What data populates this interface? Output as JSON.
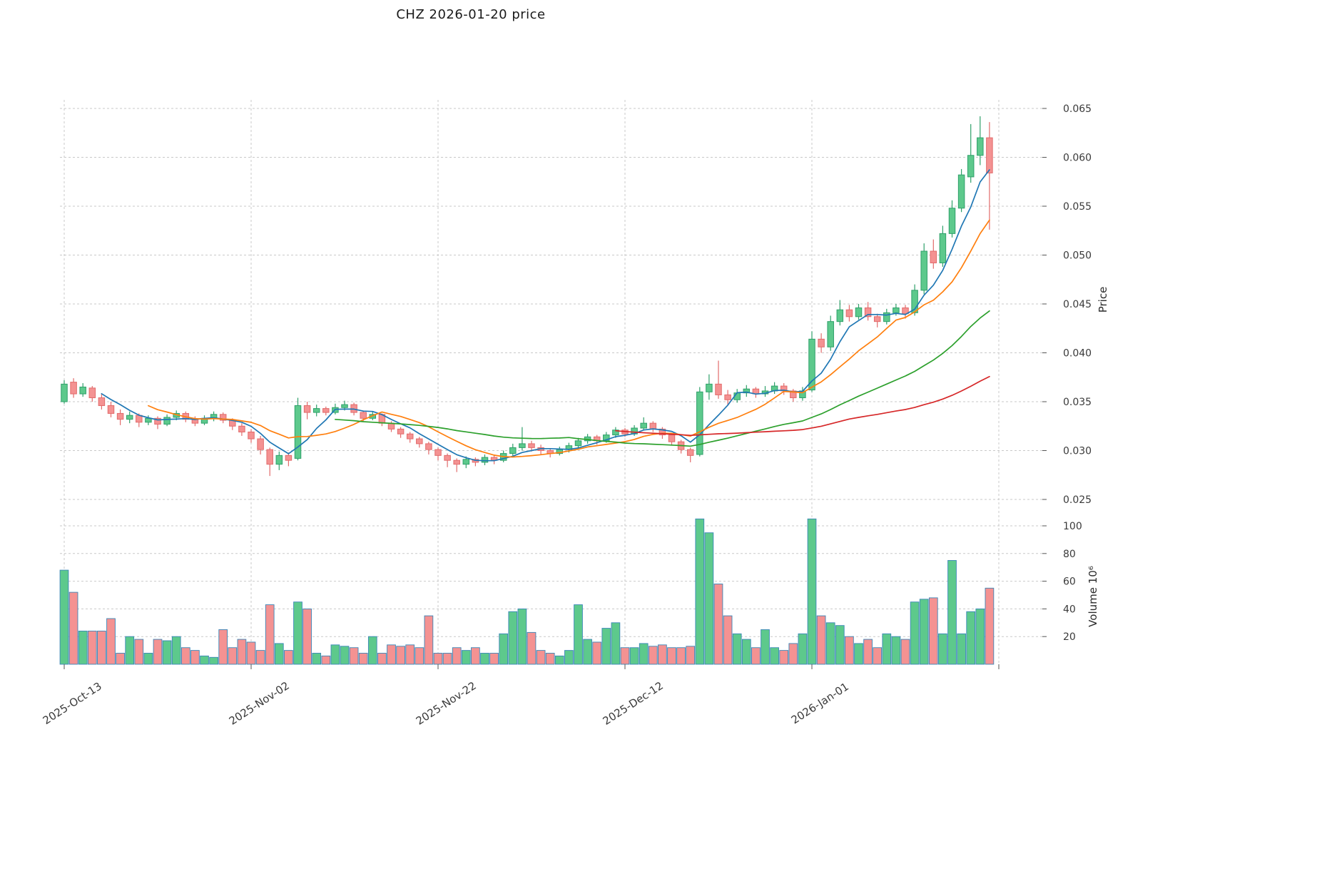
{
  "title": "CHZ  2026-01-20  price",
  "chart_data": {
    "type": "candlestick",
    "title": "CHZ  2026-01-20  price",
    "price_axis": {
      "label": "Price",
      "ticks": [
        "0.025",
        "0.030",
        "0.035",
        "0.040",
        "0.045",
        "0.050",
        "0.055",
        "0.060",
        "0.065"
      ],
      "min": 0.025,
      "max": 0.065
    },
    "volume_axis": {
      "label": "Volume  10⁶",
      "ticks": [
        20,
        40,
        60,
        80,
        100
      ],
      "max": 100,
      "unit_multiplier": 1000000
    },
    "x_axis": {
      "ticks": [
        {
          "day": 0,
          "label": "2025-Oct-13"
        },
        {
          "day": 20,
          "label": "2025-Nov-02"
        },
        {
          "day": 40,
          "label": "2025-Nov-22"
        },
        {
          "day": 60,
          "label": "2025-Dec-12"
        },
        {
          "day": 80,
          "label": "2026-Jan-01"
        }
      ],
      "extra_grid_days": [
        100
      ]
    },
    "colors": {
      "up_fill": "#5dc98c",
      "up_edge": "#2fa06a",
      "down_fill": "#f49292",
      "down_edge": "#e26b6b",
      "volume_edge": "#3b87b8",
      "grid": "#c9c9c9",
      "ma": [
        "#1f77b4",
        "#ff7f0e",
        "#2ca02c",
        "#d62728"
      ]
    },
    "ma_windows": [
      5,
      10,
      30,
      60
    ],
    "price_scale": 0.001,
    "ohlcv_format": [
      "open",
      "high",
      "low",
      "close",
      "volume_millions"
    ],
    "ohlcv": [
      [
        35.0,
        37.2,
        34.8,
        36.8,
        68
      ],
      [
        37.0,
        37.4,
        35.4,
        35.8,
        52
      ],
      [
        35.8,
        36.9,
        35.5,
        36.5,
        24
      ],
      [
        36.4,
        36.6,
        35.0,
        35.4,
        24
      ],
      [
        35.4,
        35.8,
        34.2,
        34.6,
        24
      ],
      [
        34.6,
        35.0,
        33.4,
        33.8,
        33
      ],
      [
        33.8,
        34.2,
        32.6,
        33.2,
        8
      ],
      [
        33.2,
        34.0,
        32.8,
        33.6,
        20
      ],
      [
        33.6,
        33.8,
        32.4,
        32.9,
        18
      ],
      [
        32.9,
        33.6,
        32.6,
        33.3,
        8
      ],
      [
        33.3,
        33.5,
        32.2,
        32.7,
        18
      ],
      [
        32.7,
        33.7,
        32.5,
        33.4,
        17
      ],
      [
        33.4,
        34.1,
        33.1,
        33.8,
        20
      ],
      [
        33.8,
        34.0,
        32.9,
        33.2,
        12
      ],
      [
        33.2,
        33.5,
        32.5,
        32.8,
        10
      ],
      [
        32.8,
        33.6,
        32.6,
        33.3,
        6
      ],
      [
        33.3,
        34.0,
        33.0,
        33.7,
        5
      ],
      [
        33.7,
        33.9,
        32.8,
        33.1,
        25
      ],
      [
        33.1,
        33.3,
        32.1,
        32.5,
        12
      ],
      [
        32.5,
        32.8,
        31.5,
        31.9,
        18
      ],
      [
        31.9,
        32.2,
        30.8,
        31.2,
        16
      ],
      [
        31.2,
        31.5,
        29.6,
        30.1,
        10
      ],
      [
        30.1,
        30.3,
        27.4,
        28.6,
        43
      ],
      [
        28.6,
        29.9,
        28.0,
        29.5,
        15
      ],
      [
        29.5,
        29.8,
        28.4,
        29.0,
        10
      ],
      [
        29.2,
        35.4,
        29.0,
        34.6,
        45
      ],
      [
        34.6,
        35.0,
        33.2,
        33.9,
        40
      ],
      [
        33.9,
        34.7,
        33.5,
        34.3,
        8
      ],
      [
        34.3,
        34.5,
        33.6,
        33.9,
        6
      ],
      [
        33.9,
        34.8,
        33.7,
        34.4,
        14
      ],
      [
        34.4,
        35.1,
        34.1,
        34.7,
        13
      ],
      [
        34.7,
        34.9,
        33.6,
        33.9,
        12
      ],
      [
        33.9,
        34.1,
        33.0,
        33.3,
        8
      ],
      [
        33.3,
        34.0,
        33.1,
        33.7,
        20
      ],
      [
        33.7,
        33.8,
        32.5,
        32.8,
        8
      ],
      [
        32.8,
        33.0,
        31.9,
        32.2,
        14
      ],
      [
        32.2,
        32.4,
        31.3,
        31.7,
        13
      ],
      [
        31.7,
        31.9,
        30.8,
        31.2,
        14
      ],
      [
        31.2,
        31.4,
        30.3,
        30.7,
        12
      ],
      [
        30.7,
        30.9,
        29.6,
        30.1,
        35
      ],
      [
        30.1,
        30.3,
        29.0,
        29.5,
        8
      ],
      [
        29.5,
        29.7,
        28.3,
        29.0,
        8
      ],
      [
        29.0,
        29.2,
        27.8,
        28.6,
        12
      ],
      [
        28.6,
        29.4,
        28.2,
        29.1,
        10
      ],
      [
        29.1,
        29.3,
        28.4,
        28.8,
        12
      ],
      [
        28.8,
        29.6,
        28.5,
        29.3,
        8
      ],
      [
        29.3,
        29.5,
        28.6,
        29.0,
        8
      ],
      [
        29.0,
        30.0,
        28.8,
        29.7,
        22
      ],
      [
        29.7,
        30.7,
        29.4,
        30.3,
        38
      ],
      [
        30.3,
        32.4,
        30.0,
        30.7,
        40
      ],
      [
        30.7,
        31.0,
        29.9,
        30.3,
        23
      ],
      [
        30.3,
        30.6,
        29.6,
        30.0,
        10
      ],
      [
        30.0,
        30.2,
        29.3,
        29.7,
        8
      ],
      [
        29.7,
        30.4,
        29.5,
        30.1,
        6
      ],
      [
        30.1,
        30.8,
        29.8,
        30.5,
        10
      ],
      [
        30.5,
        31.3,
        30.2,
        31.0,
        43
      ],
      [
        31.0,
        31.7,
        30.7,
        31.4,
        18
      ],
      [
        31.4,
        31.6,
        30.6,
        31.0,
        16
      ],
      [
        31.0,
        31.9,
        30.8,
        31.6,
        26
      ],
      [
        31.6,
        32.4,
        31.3,
        32.1,
        30
      ],
      [
        32.1,
        32.3,
        31.4,
        31.7,
        12
      ],
      [
        31.7,
        32.6,
        31.5,
        32.3,
        12
      ],
      [
        32.3,
        33.4,
        32.1,
        32.8,
        15
      ],
      [
        32.8,
        33.0,
        31.9,
        32.2,
        13
      ],
      [
        32.2,
        32.4,
        31.2,
        31.6,
        14
      ],
      [
        31.6,
        31.8,
        30.5,
        30.9,
        12
      ],
      [
        30.9,
        31.1,
        29.7,
        30.1,
        12
      ],
      [
        30.1,
        30.3,
        28.8,
        29.5,
        13
      ],
      [
        29.6,
        36.5,
        29.4,
        36.0,
        105
      ],
      [
        36.0,
        37.8,
        35.2,
        36.8,
        95
      ],
      [
        36.8,
        39.2,
        35.3,
        35.7,
        58
      ],
      [
        35.7,
        36.2,
        34.6,
        35.2,
        35
      ],
      [
        35.2,
        36.3,
        34.9,
        35.9,
        22
      ],
      [
        35.9,
        36.7,
        35.5,
        36.3,
        18
      ],
      [
        36.3,
        36.5,
        35.4,
        35.8,
        12
      ],
      [
        35.8,
        36.6,
        35.5,
        36.1,
        25
      ],
      [
        36.1,
        37.0,
        35.8,
        36.6,
        12
      ],
      [
        36.6,
        36.9,
        35.7,
        36.1,
        10
      ],
      [
        36.1,
        36.3,
        35.0,
        35.4,
        15
      ],
      [
        35.4,
        36.5,
        35.1,
        36.1,
        22
      ],
      [
        36.2,
        42.2,
        36.0,
        41.4,
        105
      ],
      [
        41.4,
        42.0,
        40.0,
        40.6,
        35
      ],
      [
        40.6,
        43.8,
        40.2,
        43.2,
        30
      ],
      [
        43.2,
        45.4,
        42.8,
        44.4,
        28
      ],
      [
        44.4,
        44.9,
        43.2,
        43.7,
        20
      ],
      [
        43.7,
        45.0,
        43.4,
        44.6,
        15
      ],
      [
        44.6,
        45.2,
        43.3,
        43.7,
        18
      ],
      [
        43.7,
        44.0,
        42.6,
        43.2,
        12
      ],
      [
        43.2,
        44.5,
        42.9,
        44.1,
        22
      ],
      [
        44.1,
        45.0,
        43.8,
        44.6,
        20
      ],
      [
        44.6,
        44.9,
        43.5,
        44.0,
        18
      ],
      [
        44.1,
        47.0,
        43.8,
        46.4,
        45
      ],
      [
        46.4,
        51.2,
        46.0,
        50.4,
        47
      ],
      [
        50.4,
        51.6,
        48.6,
        49.2,
        48
      ],
      [
        49.2,
        53.0,
        48.8,
        52.2,
        22
      ],
      [
        52.2,
        55.6,
        51.8,
        54.8,
        75
      ],
      [
        54.8,
        58.8,
        54.4,
        58.2,
        22
      ],
      [
        58.0,
        63.4,
        57.4,
        60.2,
        38
      ],
      [
        60.2,
        64.2,
        59.2,
        62.0,
        40
      ],
      [
        62.0,
        63.6,
        52.6,
        58.4,
        55
      ]
    ]
  }
}
